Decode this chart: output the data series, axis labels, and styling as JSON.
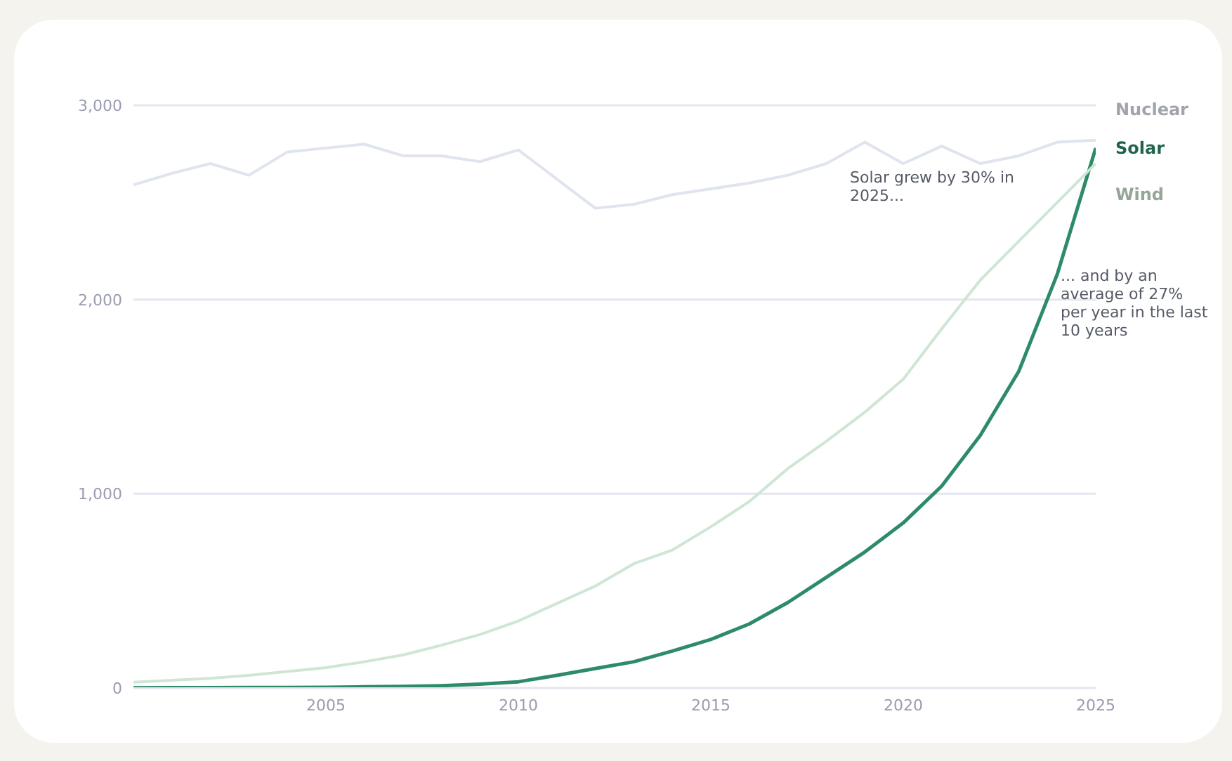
{
  "chart_data": {
    "type": "line",
    "x": [
      2000,
      2001,
      2002,
      2003,
      2004,
      2005,
      2006,
      2007,
      2008,
      2009,
      2010,
      2011,
      2012,
      2013,
      2014,
      2015,
      2016,
      2017,
      2018,
      2019,
      2020,
      2021,
      2022,
      2023,
      2024,
      2025
    ],
    "series": [
      {
        "name": "Nuclear",
        "color": "#dfe4ee",
        "values": [
          2590,
          2650,
          2700,
          2640,
          2760,
          2780,
          2800,
          2740,
          2740,
          2710,
          2770,
          2620,
          2470,
          2490,
          2540,
          2570,
          2600,
          2640,
          2700,
          2810,
          2700,
          2790,
          2700,
          2740,
          2810,
          2820
        ]
      },
      {
        "name": "Solar",
        "color": "#2e8b6a",
        "values": [
          1,
          2,
          2,
          3,
          3,
          4,
          6,
          8,
          12,
          20,
          32,
          65,
          100,
          135,
          190,
          250,
          330,
          440,
          570,
          700,
          850,
          1040,
          1300,
          1630,
          2130,
          2780
        ]
      },
      {
        "name": "Wind",
        "color": "#cfe6d4",
        "values": [
          30,
          40,
          50,
          65,
          85,
          105,
          135,
          170,
          220,
          275,
          345,
          435,
          525,
          640,
          710,
          830,
          960,
          1130,
          1270,
          1420,
          1590,
          1850,
          2100,
          2300,
          2500,
          2700
        ]
      }
    ],
    "xlim": [
      2000,
      2025
    ],
    "xticks": [
      2005,
      2010,
      2015,
      2020,
      2025
    ],
    "ylim": [
      0,
      3000
    ],
    "yticks": [
      0,
      {
        "value": 1000,
        "label": "1,000"
      },
      {
        "value": 2000,
        "label": "2,000"
      },
      {
        "value": 3000,
        "label": "3,000"
      }
    ],
    "grid": "y",
    "annotations": [
      "Solar grew by 30% in 2025...",
      "... and by an average of 27% per year in the last 10 years"
    ]
  }
}
